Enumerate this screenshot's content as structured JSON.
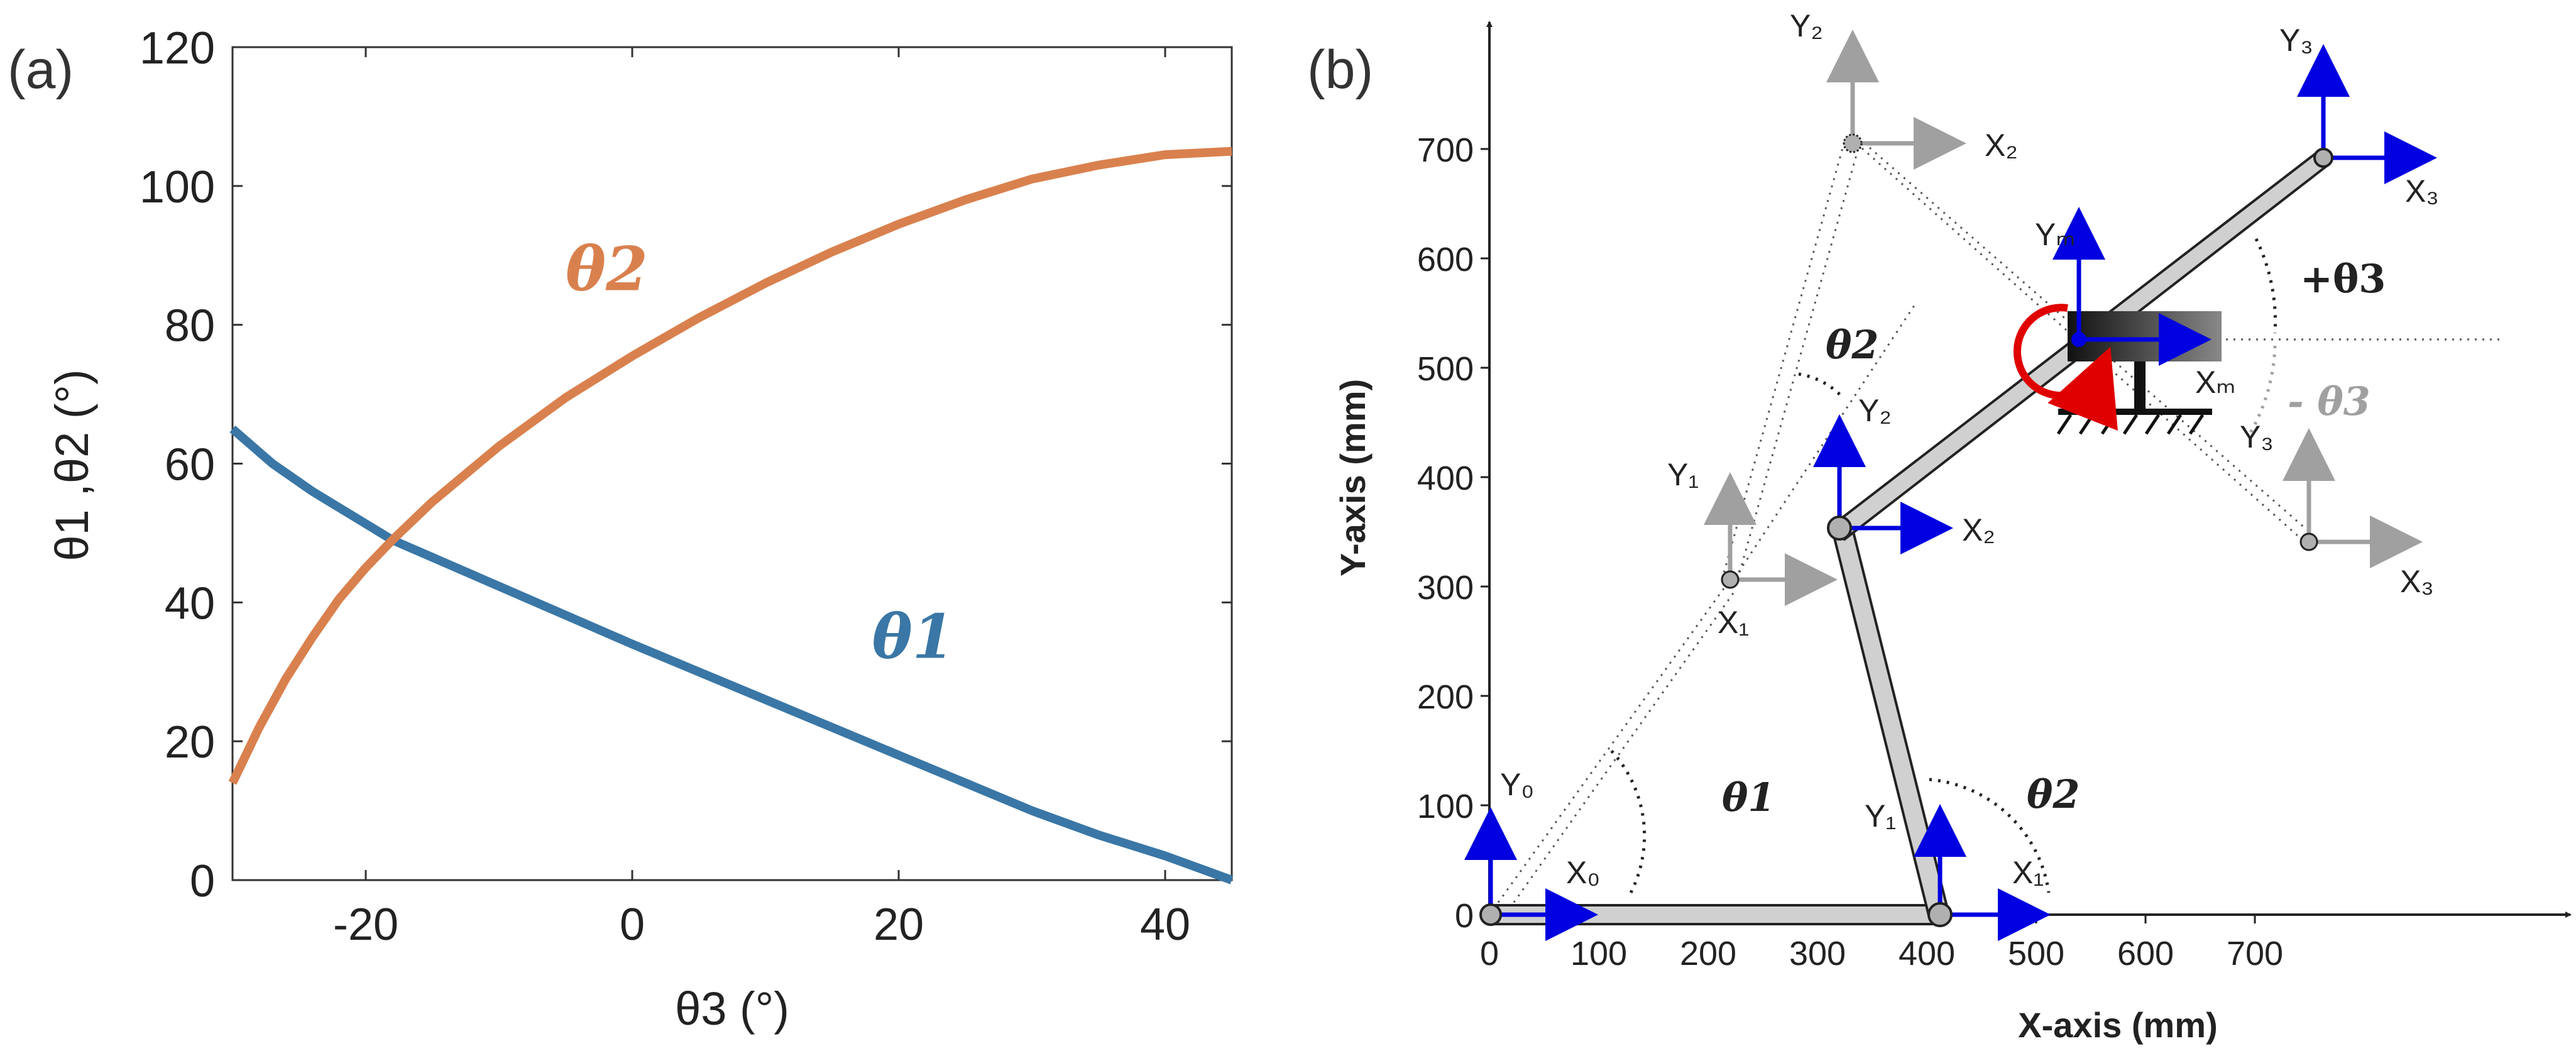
{
  "figure": {
    "panel_a_label": "(a)",
    "panel_b_label": "(b)"
  },
  "chart_data": [
    {
      "type": "line",
      "title": "",
      "xlabel": "θ3 (°)",
      "ylabel": "θ1 ,θ2 (°)",
      "xlim": [
        -30,
        45
      ],
      "ylim": [
        0,
        120
      ],
      "xticks": [
        -20,
        0,
        20,
        40
      ],
      "yticks": [
        0,
        20,
        40,
        60,
        80,
        100,
        120
      ],
      "grid": false,
      "series": [
        {
          "name": "θ1",
          "color": "#3A77A6",
          "x": [
            -30,
            -27,
            -24,
            -21,
            -18,
            -15,
            -12,
            -9,
            -6,
            -3,
            0,
            5,
            10,
            15,
            20,
            25,
            30,
            35,
            40,
            45
          ],
          "y": [
            65,
            60,
            56,
            52.5,
            49,
            46.5,
            44,
            41.5,
            39,
            36.5,
            34,
            30,
            26,
            22,
            18,
            14,
            10,
            6.5,
            3.5,
            0
          ]
        },
        {
          "name": "θ2",
          "color": "#D9814E",
          "x": [
            -30,
            -28,
            -26,
            -24,
            -22,
            -20,
            -18,
            -15,
            -10,
            -5,
            0,
            5,
            10,
            15,
            20,
            25,
            30,
            35,
            40,
            45
          ],
          "y": [
            14,
            22,
            29,
            35,
            40.5,
            45,
            49,
            54.5,
            62.5,
            69.5,
            75.5,
            81,
            86,
            90.5,
            94.5,
            98,
            101,
            103,
            104.5,
            105
          ]
        }
      ],
      "annotations": [
        {
          "text": "θ2",
          "x": -5,
          "y": 85,
          "color": "#D9814E"
        },
        {
          "text": "θ1",
          "x": 18,
          "y": 32,
          "color": "#3A77A6"
        }
      ]
    },
    {
      "type": "scatter",
      "title": "",
      "xlabel": "X-axis (mm)",
      "ylabel": "Y-axis (mm)",
      "xlim": [
        0,
        700
      ],
      "ylim": [
        0,
        700
      ],
      "xticks": [
        0,
        100,
        200,
        300,
        400,
        500,
        600,
        700
      ],
      "yticks": [
        0,
        100,
        200,
        300,
        400,
        500,
        600,
        700
      ],
      "grid": false,
      "joints": [
        {
          "name": "J0",
          "x": 0,
          "y": 0
        },
        {
          "name": "J1",
          "x": 330,
          "y": 0
        },
        {
          "name": "J2",
          "x": 255,
          "y": 330
        },
        {
          "name": "J3",
          "x": 600,
          "y": 670
        },
        {
          "name": "J1 alt",
          "x": 175,
          "y": 285
        },
        {
          "name": "J2 alt",
          "x": 265,
          "y": 680
        },
        {
          "name": "J3 alt",
          "x": 600,
          "y": 315
        },
        {
          "name": "Motor",
          "x": 420,
          "y": 500
        }
      ],
      "frame_labels": {
        "x0": "X₀",
        "y0": "Y₀",
        "x1": "X₁",
        "y1": "Y₁",
        "x2": "X₂",
        "y2": "Y₂",
        "x3": "X₃",
        "y3": "Y₃",
        "xm": "Xₘ",
        "ym": "Yₘ"
      },
      "annotations": {
        "theta1": "θ1",
        "theta2": "θ2",
        "theta2_alt": "θ2",
        "theta3_pos": "+θ3",
        "theta3_neg": "- θ3"
      },
      "colors": {
        "active_frame": "#0000E0",
        "alt_frame": "#A0A0A0",
        "link_fill": "#D0D0D0",
        "motor_arrow": "#E00000"
      }
    }
  ]
}
